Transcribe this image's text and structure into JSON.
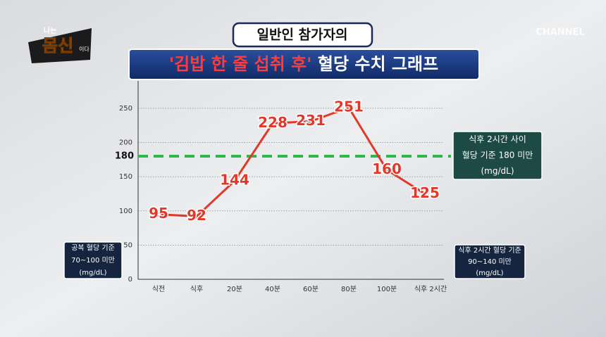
{
  "logo": {
    "top": "나는",
    "main": "몸신",
    "side": "이다"
  },
  "channel": "CHANNEL",
  "chart_data": {
    "type": "line",
    "title_line1": "일반인 참가자의",
    "title_line2": {
      "highlight": "'김밥 한 줄 섭취 후'",
      "rest": " 혈당 수치 그래프"
    },
    "categories": [
      "식전",
      "식후",
      "20분",
      "40분",
      "60분",
      "80분",
      "100분",
      "식후 2시간"
    ],
    "values": [
      95,
      92,
      144,
      228,
      231,
      251,
      160,
      125
    ],
    "color": "#e0392b",
    "ylim": [
      0,
      290
    ],
    "yticks": [
      0,
      50,
      100,
      150,
      200,
      250
    ],
    "grid": true,
    "threshold": {
      "value": 180,
      "color": "#2db84a"
    },
    "threshold_label": "180",
    "notes": {
      "threshold": [
        "식후 2시간 사이",
        "혈당 기준 180 미만",
        "(mg/dL)"
      ],
      "fasting": [
        "공복 혈당 기준",
        "70~100 미만",
        "(mg/dL)"
      ],
      "after": [
        "식후 2시간 혈당 기준",
        "90~140 미만",
        "(mg/dL)"
      ]
    }
  }
}
